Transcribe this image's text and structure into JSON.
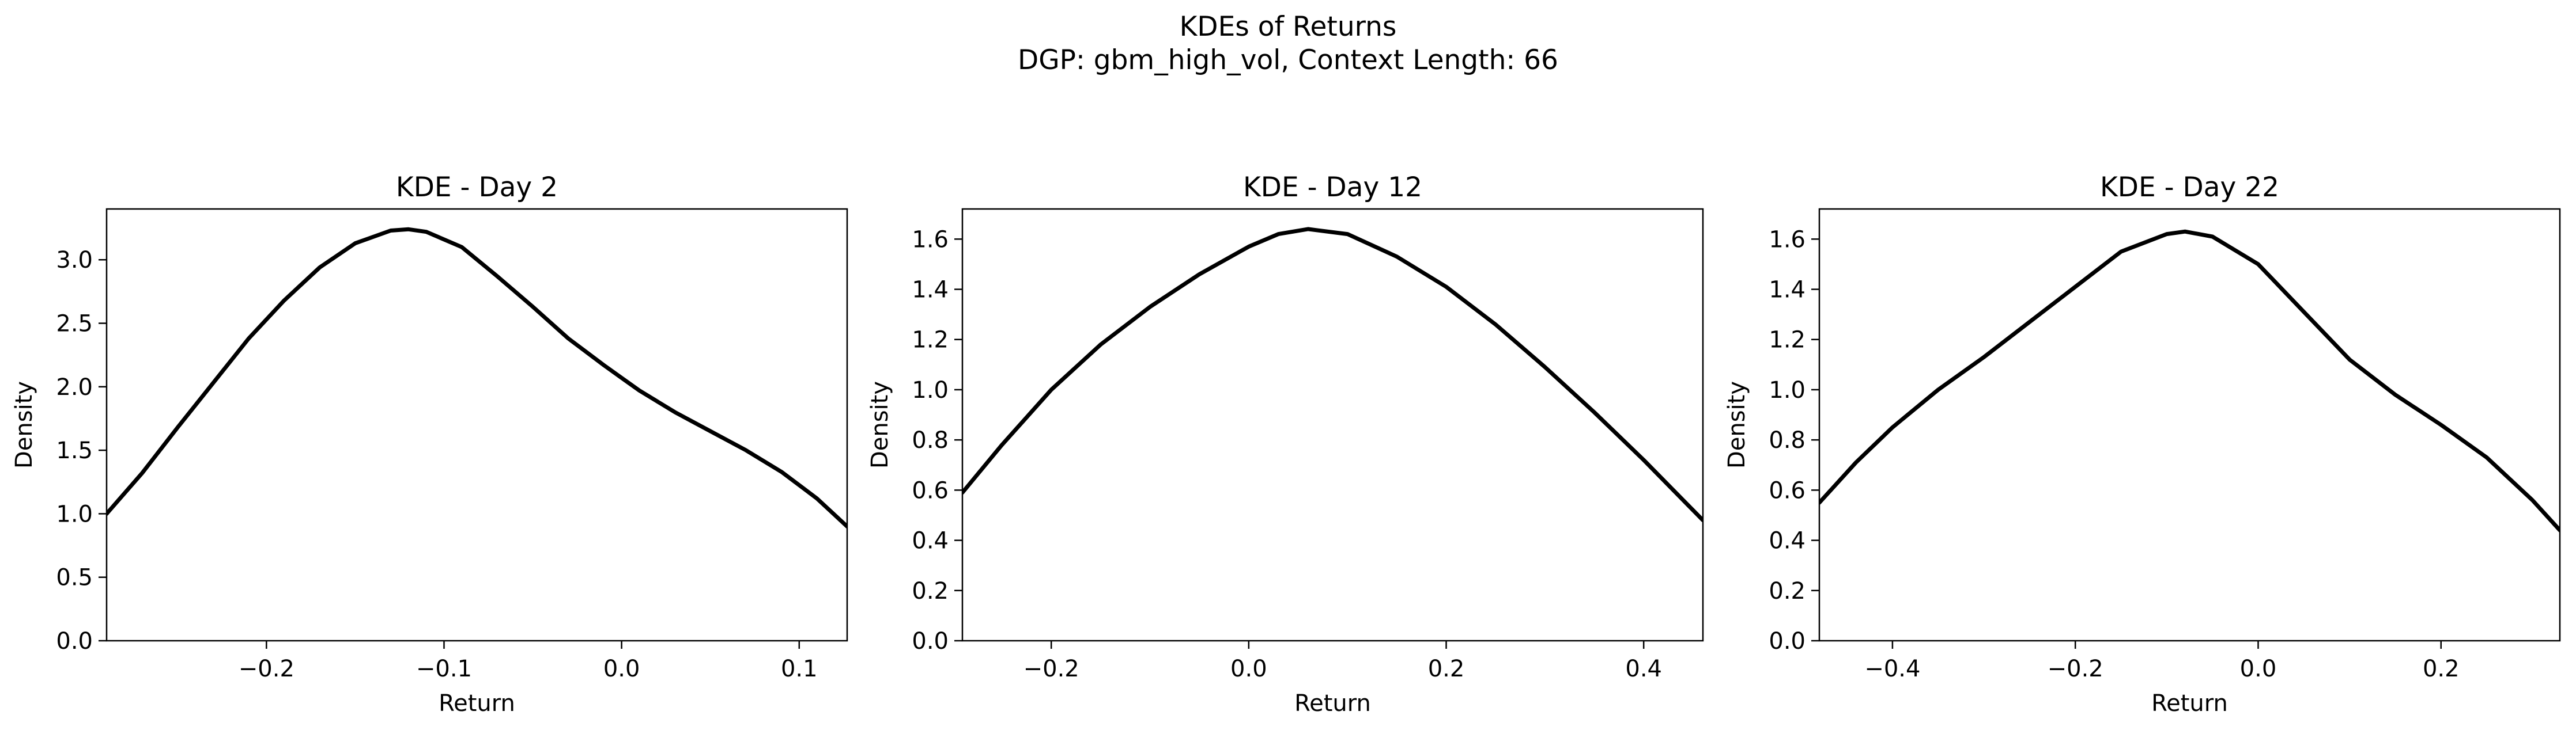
{
  "figure": {
    "suptitle_line1": "KDEs of Returns",
    "suptitle_line2": "DGP: gbm_high_vol, Context Length: 66"
  },
  "chart_data": [
    {
      "type": "line",
      "title": "KDE - Day 2",
      "xlabel": "Return",
      "ylabel": "Density",
      "xlim": [
        -0.29,
        0.127
      ],
      "ylim": [
        0,
        3.4
      ],
      "xticks": [
        -0.2,
        -0.1,
        0.0,
        0.1
      ],
      "xtick_labels": [
        "−0.2",
        "−0.1",
        "0.0",
        "0.1"
      ],
      "yticks": [
        0,
        0.5,
        1.0,
        1.5,
        2.0,
        2.5,
        3.0
      ],
      "ytick_labels": [
        "0.0",
        "0.5",
        "1.0",
        "1.5",
        "2.0",
        "2.5",
        "3.0"
      ],
      "grid": false,
      "series": [
        {
          "color": "#000000",
          "x": [
            -0.29,
            -0.27,
            -0.25,
            -0.23,
            -0.21,
            -0.19,
            -0.17,
            -0.15,
            -0.13,
            -0.12,
            -0.11,
            -0.09,
            -0.07,
            -0.05,
            -0.03,
            -0.01,
            0.0,
            0.01,
            0.03,
            0.05,
            0.07,
            0.09,
            0.11,
            0.127
          ],
          "y": [
            1.0,
            1.32,
            1.68,
            2.03,
            2.38,
            2.68,
            2.94,
            3.13,
            3.23,
            3.24,
            3.22,
            3.1,
            2.87,
            2.63,
            2.38,
            2.17,
            2.07,
            1.97,
            1.8,
            1.65,
            1.5,
            1.33,
            1.12,
            0.9
          ]
        }
      ]
    },
    {
      "type": "line",
      "title": "KDE - Day 12",
      "xlabel": "Return",
      "ylabel": "Density",
      "xlim": [
        -0.29,
        0.46
      ],
      "ylim": [
        0,
        1.72
      ],
      "xticks": [
        -0.2,
        0.0,
        0.2,
        0.4
      ],
      "xtick_labels": [
        "−0.2",
        "0.0",
        "0.2",
        "0.4"
      ],
      "yticks": [
        0,
        0.2,
        0.4,
        0.6,
        0.8,
        1.0,
        1.2,
        1.4,
        1.6
      ],
      "ytick_labels": [
        "0.0",
        "0.2",
        "0.4",
        "0.6",
        "0.8",
        "1.0",
        "1.2",
        "1.4",
        "1.6"
      ],
      "grid": false,
      "series": [
        {
          "color": "#000000",
          "x": [
            -0.29,
            -0.25,
            -0.2,
            -0.15,
            -0.1,
            -0.05,
            0.0,
            0.03,
            0.06,
            0.1,
            0.15,
            0.2,
            0.25,
            0.3,
            0.35,
            0.4,
            0.46
          ],
          "y": [
            0.59,
            0.78,
            1.0,
            1.18,
            1.33,
            1.46,
            1.57,
            1.62,
            1.64,
            1.62,
            1.53,
            1.41,
            1.26,
            1.09,
            0.91,
            0.72,
            0.48
          ]
        }
      ]
    },
    {
      "type": "line",
      "title": "KDE - Day 22",
      "xlabel": "Return",
      "ylabel": "Density",
      "xlim": [
        -0.48,
        0.33
      ],
      "ylim": [
        0,
        1.72
      ],
      "xticks": [
        -0.4,
        -0.2,
        0.0,
        0.2
      ],
      "xtick_labels": [
        "−0.4",
        "−0.2",
        "0.0",
        "0.2"
      ],
      "yticks": [
        0,
        0.2,
        0.4,
        0.6,
        0.8,
        1.0,
        1.2,
        1.4,
        1.6
      ],
      "ytick_labels": [
        "0.0",
        "0.2",
        "0.4",
        "0.6",
        "0.8",
        "1.0",
        "1.2",
        "1.4",
        "1.6"
      ],
      "grid": false,
      "series": [
        {
          "color": "#000000",
          "x": [
            -0.48,
            -0.44,
            -0.4,
            -0.35,
            -0.3,
            -0.25,
            -0.2,
            -0.15,
            -0.1,
            -0.08,
            -0.05,
            0.0,
            0.05,
            0.1,
            0.15,
            0.2,
            0.25,
            0.3,
            0.33
          ],
          "y": [
            0.55,
            0.71,
            0.85,
            1.0,
            1.13,
            1.27,
            1.41,
            1.55,
            1.62,
            1.63,
            1.61,
            1.5,
            1.31,
            1.12,
            0.98,
            0.86,
            0.73,
            0.56,
            0.44
          ]
        }
      ]
    }
  ]
}
